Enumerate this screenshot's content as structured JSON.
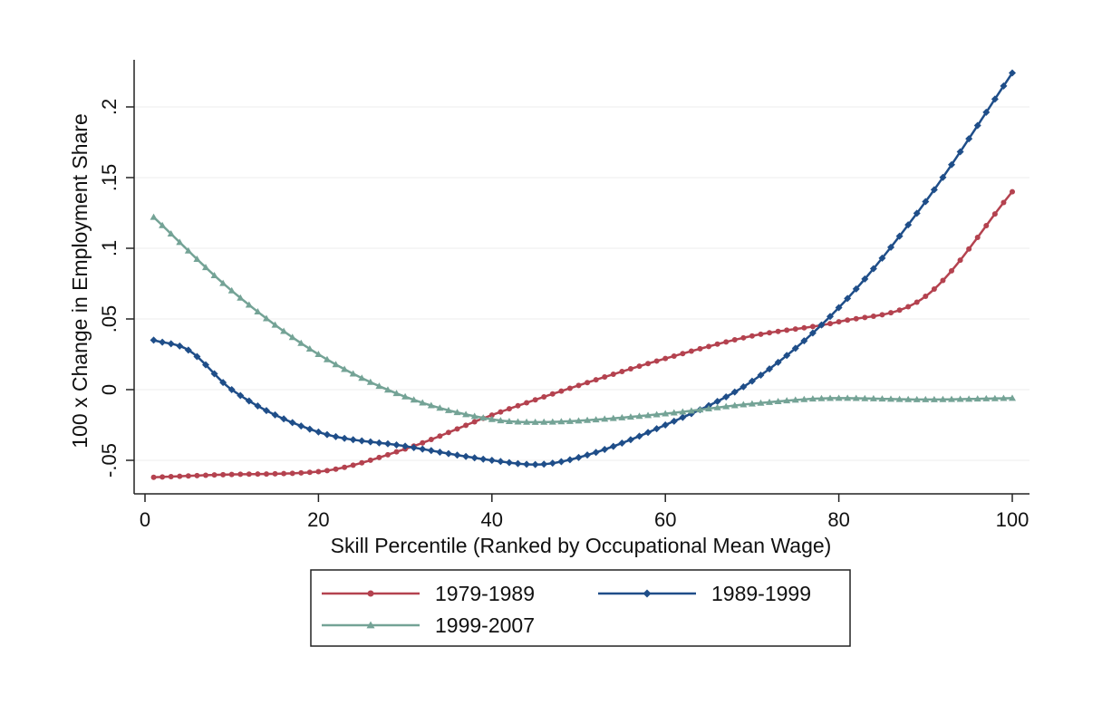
{
  "chart_data": {
    "type": "line",
    "title": "",
    "xlabel": "Skill Percentile (Ranked by Occupational Mean Wage)",
    "ylabel": "100 x Change in Employment Share",
    "xlim": [
      0,
      100
    ],
    "ylim": [
      -0.07,
      0.23
    ],
    "xticks": [
      {
        "value": 0,
        "label": "0"
      },
      {
        "value": 20,
        "label": "20"
      },
      {
        "value": 40,
        "label": "40"
      },
      {
        "value": 60,
        "label": "60"
      },
      {
        "value": 80,
        "label": "80"
      },
      {
        "value": 100,
        "label": "100"
      }
    ],
    "yticks": [
      {
        "value": -0.05,
        "label": "-.05"
      },
      {
        "value": 0,
        "label": "0"
      },
      {
        "value": 0.05,
        "label": ".05"
      },
      {
        "value": 0.1,
        "label": ".1"
      },
      {
        "value": 0.15,
        "label": ".15"
      },
      {
        "value": 0.2,
        "label": ".2"
      }
    ],
    "grid": true,
    "legend_position": "bottom",
    "series": [
      {
        "name": "1979-1989",
        "color": "#b4424f",
        "marker": "circle",
        "x": [
          1,
          10,
          20,
          30,
          40,
          50,
          60,
          70,
          80,
          90,
          100
        ],
        "y": [
          -0.062,
          -0.06,
          -0.058,
          -0.042,
          -0.018,
          0.003,
          0.022,
          0.038,
          0.048,
          0.066,
          0.14
        ]
      },
      {
        "name": "1989-1999",
        "color": "#1f4e89",
        "marker": "diamond",
        "x": [
          1,
          5,
          10,
          20,
          30,
          40,
          45,
          50,
          60,
          70,
          80,
          90,
          100
        ],
        "y": [
          0.035,
          0.028,
          0.0,
          -0.03,
          -0.04,
          -0.05,
          -0.053,
          -0.048,
          -0.025,
          0.006,
          0.058,
          0.133,
          0.224
        ]
      },
      {
        "name": "1999-2007",
        "color": "#74a396",
        "marker": "triangle",
        "x": [
          1,
          10,
          20,
          30,
          40,
          45,
          50,
          60,
          70,
          80,
          90,
          100
        ],
        "y": [
          0.122,
          0.07,
          0.025,
          -0.005,
          -0.021,
          -0.023,
          -0.022,
          -0.017,
          -0.01,
          -0.006,
          -0.007,
          -0.006
        ]
      }
    ]
  }
}
